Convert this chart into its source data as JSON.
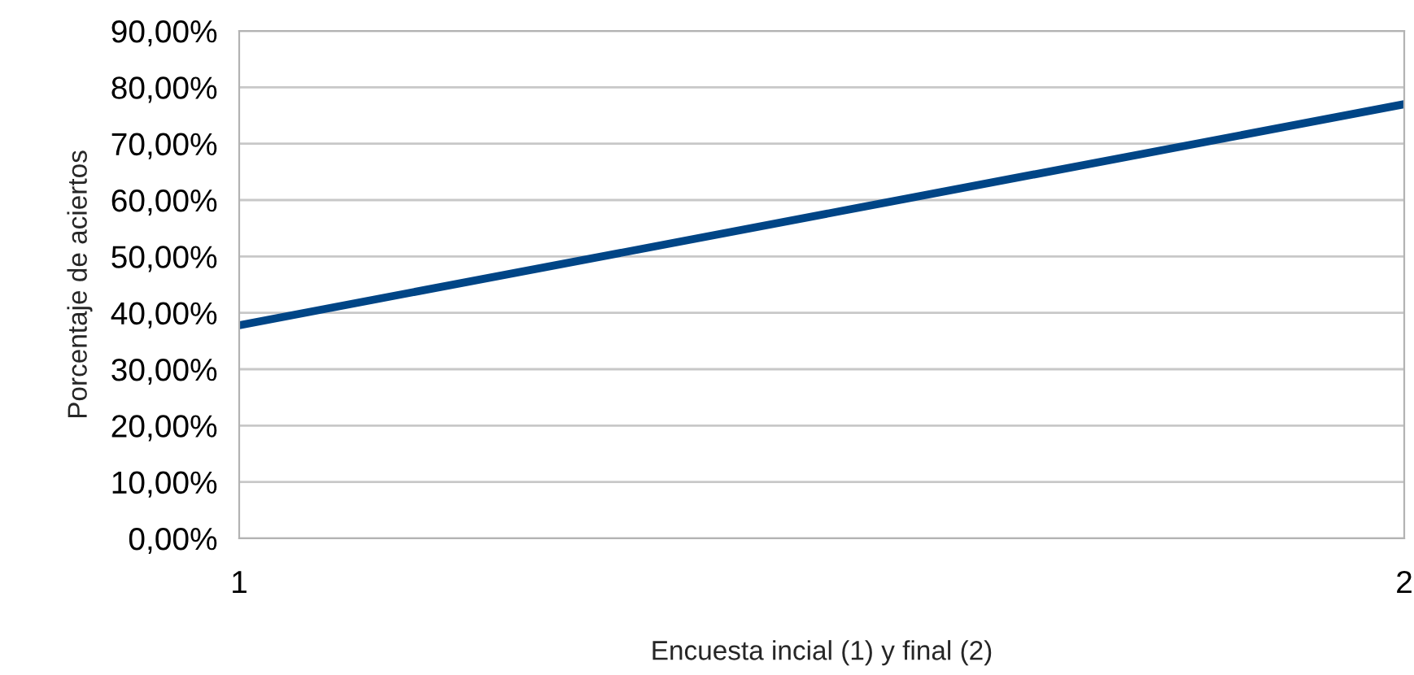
{
  "chart_data": {
    "type": "line",
    "xlabel": "Encuesta incial (1) y final (2)",
    "ylabel": "Porcentaje de aciertos",
    "x": [
      1,
      2
    ],
    "series": [
      {
        "color": "#004586",
        "values": [
          37.8,
          77.0
        ]
      }
    ],
    "xlim": [
      1,
      2
    ],
    "xticks": [
      1,
      2
    ],
    "ylim": [
      0,
      90
    ],
    "yticks": [
      {
        "value": 0,
        "label": "0,00%"
      },
      {
        "value": 10,
        "label": "10,00%"
      },
      {
        "value": 20,
        "label": "20,00%"
      },
      {
        "value": 30,
        "label": "30,00%"
      },
      {
        "value": 40,
        "label": "40,00%"
      },
      {
        "value": 50,
        "label": "50,00%"
      },
      {
        "value": 60,
        "label": "60,00%"
      },
      {
        "value": 70,
        "label": "70,00%"
      },
      {
        "value": 80,
        "label": "80,00%"
      },
      {
        "value": 90,
        "label": "90,00%"
      }
    ],
    "grid": "y",
    "marker": "none",
    "line_style": "solid"
  }
}
